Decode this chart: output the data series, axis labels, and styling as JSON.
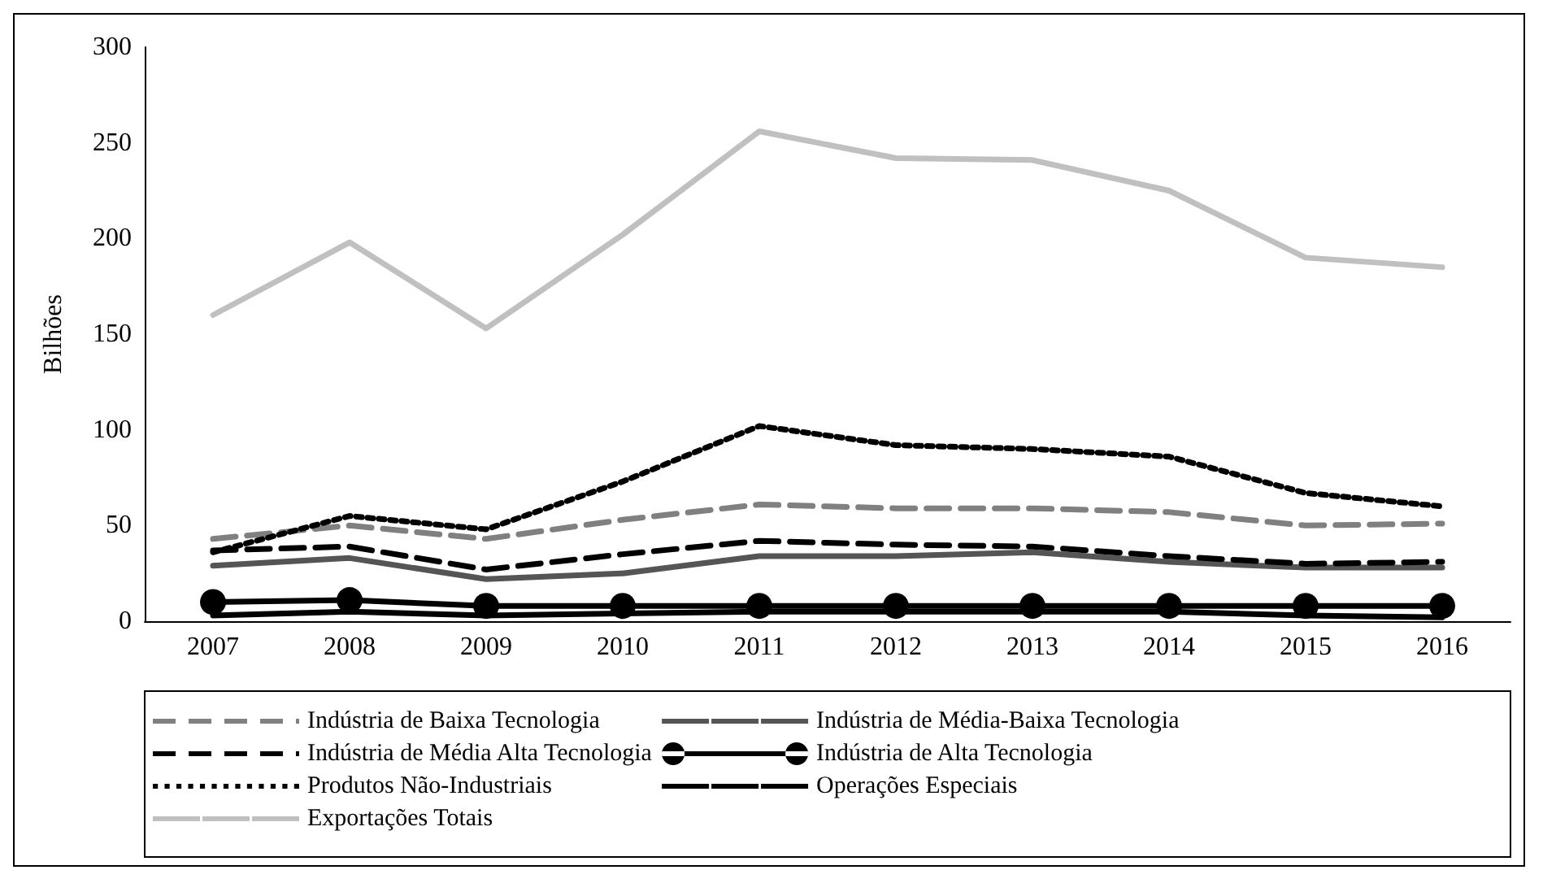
{
  "chart_data": {
    "type": "line",
    "ylabel": "Bilhões",
    "categories": [
      "2007",
      "2008",
      "2009",
      "2010",
      "2011",
      "2012",
      "2013",
      "2014",
      "2015",
      "2016"
    ],
    "ylim": [
      0,
      300
    ],
    "yticks": [
      0,
      50,
      100,
      150,
      200,
      250,
      300
    ],
    "grid": false,
    "legend": "bottom",
    "series": [
      {
        "name": "Indústria de Baixa Tecnologia",
        "color": "#808080",
        "line_style": "dashed",
        "marker": "none",
        "values": [
          43,
          50,
          43,
          53,
          61,
          59,
          59,
          57,
          50,
          51
        ]
      },
      {
        "name": "Indústria de Média-Baixa Tecnologia",
        "color": "#555555",
        "line_style": "solid",
        "marker": "none",
        "values": [
          29,
          33,
          22,
          25,
          34,
          34,
          36,
          31,
          28,
          28
        ]
      },
      {
        "name": "Indústria de Média Alta Tecnologia",
        "color": "#000000",
        "line_style": "dashed",
        "marker": "none",
        "values": [
          37,
          39,
          27,
          35,
          42,
          40,
          39,
          34,
          30,
          31
        ]
      },
      {
        "name": "Indústria de Alta Tecnologia",
        "color": "#000000",
        "line_style": "solid",
        "marker": "circle",
        "values": [
          10,
          11,
          8,
          8,
          8,
          8,
          8,
          8,
          8,
          8
        ]
      },
      {
        "name": "Produtos Não-Industriais",
        "color": "#000000",
        "line_style": "dotted",
        "marker": "none",
        "values": [
          36,
          55,
          48,
          73,
          102,
          92,
          90,
          86,
          67,
          60
        ]
      },
      {
        "name": "Operações Especiais",
        "color": "#000000",
        "line_style": "solid",
        "marker": "none",
        "values": [
          3,
          5,
          3,
          4,
          5,
          5,
          5,
          5,
          3,
          2
        ]
      },
      {
        "name": "Exportações Totais",
        "color": "#c0c0c0",
        "line_style": "solid",
        "marker": "none",
        "values": [
          160,
          198,
          153,
          202,
          256,
          242,
          241,
          225,
          190,
          185
        ]
      }
    ]
  }
}
